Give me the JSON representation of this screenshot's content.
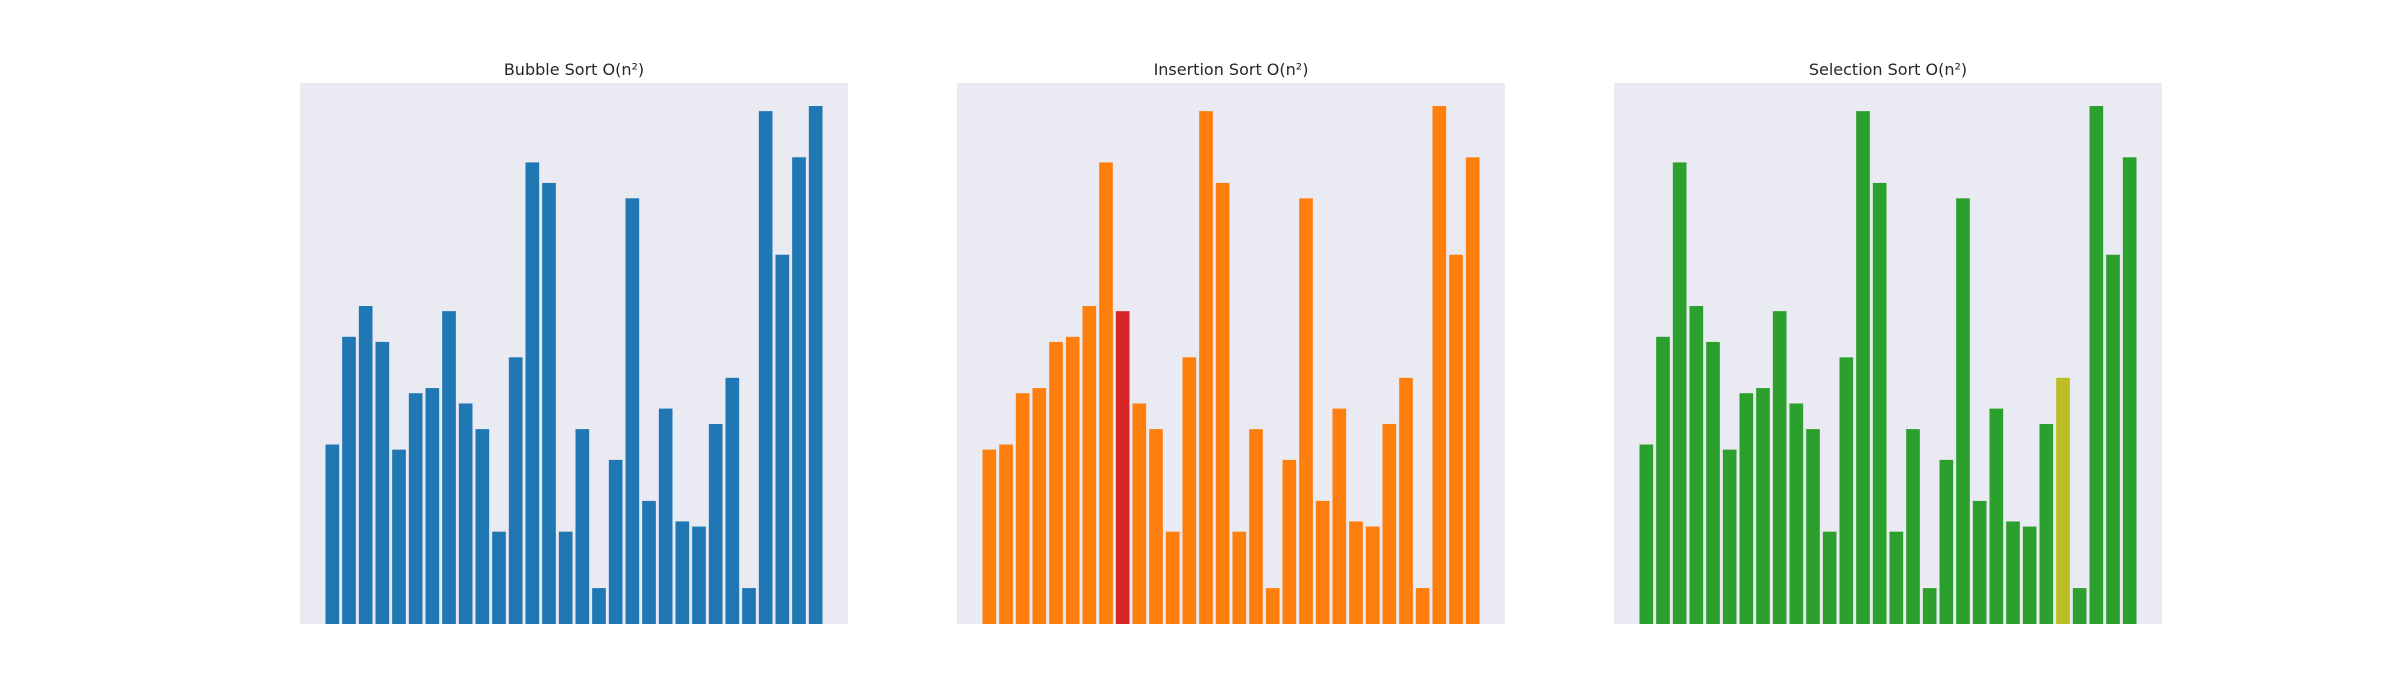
{
  "chart_data": [
    {
      "type": "bar",
      "title": "Bubble Sort O(n²)",
      "xlabel": "",
      "ylabel": "",
      "ylim": [
        0,
        100
      ],
      "grid": false,
      "bar_color": "#1f77b4",
      "values": [
        35,
        56,
        62,
        55,
        34,
        45,
        46,
        61,
        43,
        38,
        18,
        52,
        90,
        86,
        18,
        38,
        7,
        32,
        83,
        24,
        42,
        20,
        19,
        39,
        48,
        7,
        100,
        72,
        91,
        101
      ],
      "highlights": []
    },
    {
      "type": "bar",
      "title": "Insertion Sort O(n²)",
      "xlabel": "",
      "ylabel": "",
      "ylim": [
        0,
        100
      ],
      "grid": false,
      "bar_color": "#ff7f0e",
      "values": [
        34,
        35,
        45,
        46,
        55,
        56,
        62,
        90,
        61,
        43,
        38,
        18,
        52,
        100,
        86,
        18,
        38,
        7,
        32,
        83,
        24,
        42,
        20,
        19,
        39,
        48,
        7,
        101,
        72,
        91
      ],
      "highlights": [
        {
          "index": 8,
          "color": "#d62728"
        }
      ]
    },
    {
      "type": "bar",
      "title": "Selection Sort O(n²)",
      "xlabel": "",
      "ylabel": "",
      "ylim": [
        0,
        100
      ],
      "grid": false,
      "bar_color": "#2ca02c",
      "values": [
        35,
        56,
        90,
        62,
        55,
        34,
        45,
        46,
        61,
        43,
        38,
        18,
        52,
        100,
        86,
        18,
        38,
        7,
        32,
        83,
        24,
        42,
        20,
        19,
        39,
        48,
        7,
        101,
        72,
        91
      ],
      "highlights": [
        {
          "index": 25,
          "color": "#bcbd22"
        }
      ]
    }
  ]
}
